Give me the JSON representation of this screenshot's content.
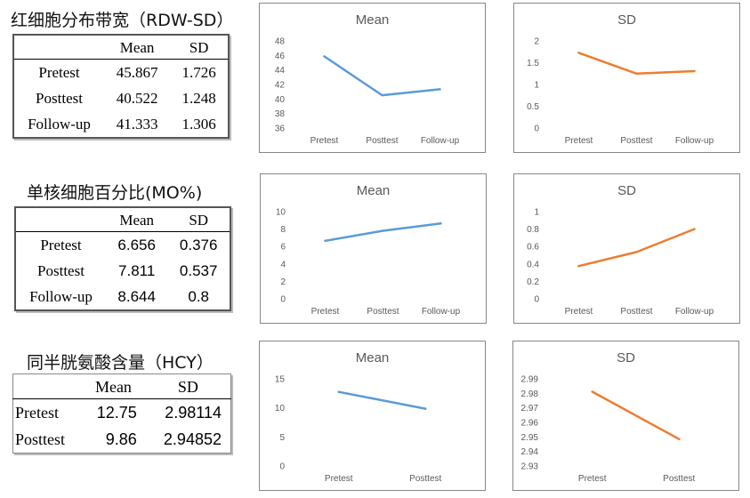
{
  "sections": [
    {
      "heading": "红细胞分布带宽（RDW-SD）",
      "table": {
        "headers": [
          "",
          "Mean",
          "SD"
        ],
        "rows": [
          [
            "Pretest",
            "45.867",
            "1.726"
          ],
          [
            "Posttest",
            "40.522",
            "1.248"
          ],
          [
            "Follow-up",
            "41.333",
            "1.306"
          ]
        ]
      }
    },
    {
      "heading": "单核细胞百分比(MO%)",
      "table": {
        "headers": [
          "",
          "Mean",
          "SD"
        ],
        "rows": [
          [
            "Pretest",
            "6.656",
            "0.376"
          ],
          [
            "Posttest",
            "7.811",
            "0.537"
          ],
          [
            "Follow-up",
            "8.644",
            "0.8"
          ]
        ]
      }
    },
    {
      "heading": "同半胱氨酸含量（HCY）",
      "table": {
        "headers": [
          "",
          "Mean",
          "SD"
        ],
        "rows": [
          [
            "Pretest",
            "12.75",
            "2.98114"
          ],
          [
            "Posttest",
            "9.86",
            "2.94852"
          ]
        ]
      }
    }
  ],
  "chart_data": [
    {
      "type": "line",
      "title": "Mean",
      "categories": [
        "Pretest",
        "Posttest",
        "Follow-up"
      ],
      "series": [
        {
          "values": [
            45.867,
            40.522,
            41.333
          ],
          "color": "#5b9bd5"
        }
      ],
      "ylim": [
        36,
        48
      ],
      "yticks": [
        "36",
        "38",
        "40",
        "42",
        "44",
        "46",
        "48"
      ],
      "grid": false
    },
    {
      "type": "line",
      "title": "SD",
      "categories": [
        "Pretest",
        "Posttest",
        "Follow-up"
      ],
      "series": [
        {
          "values": [
            1.726,
            1.248,
            1.306
          ],
          "color": "#ed7d31"
        }
      ],
      "ylim": [
        0,
        2
      ],
      "yticks": [
        "0",
        "0.5",
        "1",
        "1.5",
        "2"
      ],
      "grid": false
    },
    {
      "type": "line",
      "title": "Mean",
      "categories": [
        "Pretest",
        "Posttest",
        "Follow-up"
      ],
      "series": [
        {
          "values": [
            6.656,
            7.811,
            8.644
          ],
          "color": "#5b9bd5"
        }
      ],
      "ylim": [
        0,
        10
      ],
      "yticks": [
        "0",
        "2",
        "4",
        "6",
        "8",
        "10"
      ],
      "grid": false
    },
    {
      "type": "line",
      "title": "SD",
      "categories": [
        "Pretest",
        "Posttest",
        "Follow-up"
      ],
      "series": [
        {
          "values": [
            0.376,
            0.537,
            0.8
          ],
          "color": "#ed7d31"
        }
      ],
      "ylim": [
        0,
        1
      ],
      "yticks": [
        "0",
        "0.2",
        "0.4",
        "0.6",
        "0.8",
        "1"
      ],
      "grid": false
    },
    {
      "type": "line",
      "title": "Mean",
      "categories": [
        "Pretest",
        "Posttest"
      ],
      "series": [
        {
          "values": [
            12.75,
            9.86
          ],
          "color": "#5b9bd5"
        }
      ],
      "ylim": [
        0,
        15
      ],
      "yticks": [
        "0",
        "5",
        "10",
        "15"
      ],
      "grid": false
    },
    {
      "type": "line",
      "title": "SD",
      "categories": [
        "Pretest",
        "Posttest"
      ],
      "series": [
        {
          "values": [
            2.98114,
            2.94852
          ],
          "color": "#ed7d31"
        }
      ],
      "ylim": [
        2.93,
        2.99
      ],
      "yticks": [
        "2.93",
        "2.94",
        "2.95",
        "2.96",
        "2.97",
        "2.98",
        "2.99"
      ],
      "grid": false
    }
  ]
}
